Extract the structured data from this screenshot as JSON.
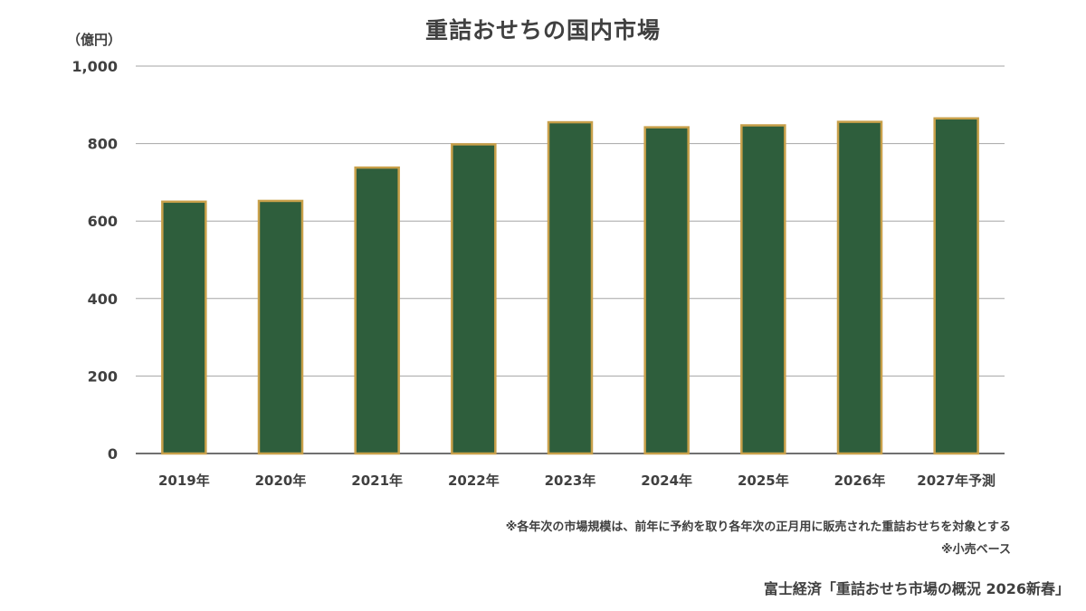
{
  "chart_data": {
    "type": "bar",
    "title": "重詰おせちの国内市場",
    "ylabel": "（億円）",
    "xlabel": "",
    "categories": [
      "2019年",
      "2020年",
      "2021年",
      "2022年",
      "2023年",
      "2024年",
      "2025年",
      "2026年",
      "2027年予測"
    ],
    "values": [
      650,
      652,
      738,
      798,
      855,
      842,
      847,
      856,
      865
    ],
    "ylim": [
      0,
      1000
    ],
    "yticks": [
      0,
      200,
      400,
      600,
      800,
      1000
    ],
    "ytick_labels": [
      "0",
      "200",
      "400",
      "600",
      "800",
      "1,000"
    ],
    "grid": true,
    "bar_color": "#2e5e3c",
    "bar_edge_color": "#c8a04a",
    "grid_color": "#a6a6a6"
  },
  "notes": {
    "note1": "※各年次の市場規模は、前年に予約を取り各年次の正月用に販売された重詰おせちを対象とする",
    "note2": "※小売ベース"
  },
  "source": "富士経済「重詰おせち市場の概況 2026新春」"
}
